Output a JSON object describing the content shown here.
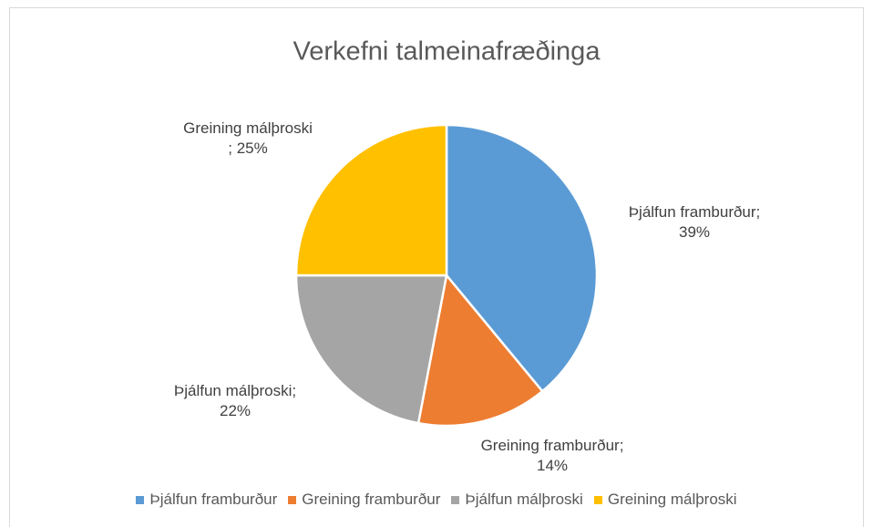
{
  "chart_data": {
    "type": "pie",
    "title": "Verkefni talmeinafræðinga",
    "categories": [
      "Þjálfun framburður",
      "Greining framburður",
      "Þjálfun málþroski",
      "Greining málþroski"
    ],
    "values": [
      39,
      14,
      22,
      25
    ],
    "value_labels": [
      "Þjálfun framburður; 39%",
      "Greining framburður; 14%",
      "Þjálfun málþroski; 22%",
      "Greining málþroski ; 25%"
    ],
    "colors": [
      "#5b9bd5",
      "#ed7d31",
      "#a5a5a5",
      "#ffc000"
    ],
    "legend": "bottom"
  }
}
